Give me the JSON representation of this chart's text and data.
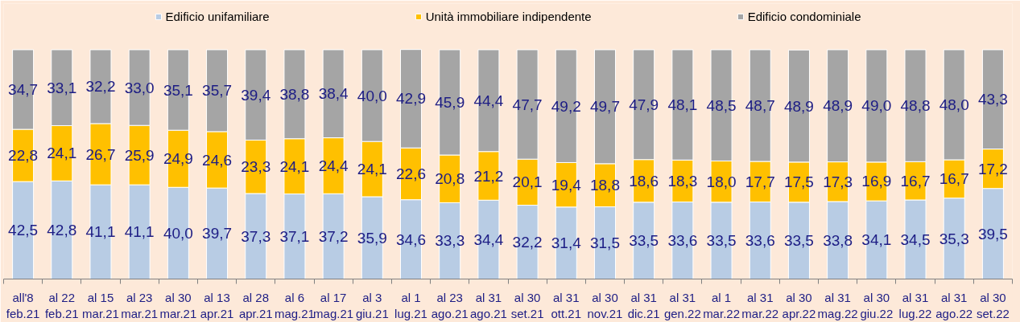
{
  "chart_data": {
    "type": "bar",
    "stacked": true,
    "legend": "top",
    "categories": [
      "all'8\nfeb.21",
      "al 22\nfeb.21",
      "al 15\nmar.21",
      "al 23\nmar.21",
      "al 30\nmar.21",
      "al 13\napr.21",
      "al 28\napr.21",
      "al 6\nmag.21",
      "al 17\nmag.21",
      "al 3\ngiu.21",
      "al 1\nlug.21",
      "al 23\nago.21",
      "al 31\nago.21",
      "al 30\nset.21",
      "al 31\nott.21",
      "al 30\nnov.21",
      "al 31\ndic.21",
      "al 31\ngen.22",
      "al 1\nmar.22",
      "al 31\nmar.22",
      "al 30\napr.22",
      "al 31\nmag.22",
      "al 30\ngiu.22",
      "al 31\nlug.22",
      "al 31\nago.22",
      "al 30\nset.22"
    ],
    "series": [
      {
        "name": "Edificio unifamiliare",
        "color": "#b8cce4",
        "values": [
          42.5,
          42.8,
          41.1,
          41.1,
          40.0,
          39.7,
          37.3,
          37.1,
          37.2,
          35.9,
          34.6,
          33.3,
          34.4,
          32.2,
          31.4,
          31.5,
          33.5,
          33.6,
          33.5,
          33.6,
          33.5,
          33.8,
          34.1,
          34.5,
          35.3,
          39.5
        ],
        "value_labels": [
          "42,5",
          "42,8",
          "41,1",
          "41,1",
          "40,0",
          "39,7",
          "37,3",
          "37,1",
          "37,2",
          "35,9",
          "34,6",
          "33,3",
          "34,4",
          "32,2",
          "31,4",
          "31,5",
          "33,5",
          "33,6",
          "33,5",
          "33,6",
          "33,5",
          "33,8",
          "34,1",
          "34,5",
          "35,3",
          "39,5"
        ]
      },
      {
        "name": "Unità immobiliare indipendente",
        "color": "#ffc000",
        "values": [
          22.8,
          24.1,
          26.7,
          25.9,
          24.9,
          24.6,
          23.3,
          24.1,
          24.4,
          24.1,
          22.6,
          20.8,
          21.2,
          20.1,
          19.4,
          18.8,
          18.6,
          18.3,
          18.0,
          17.7,
          17.5,
          17.3,
          16.9,
          16.7,
          16.7,
          17.2
        ],
        "value_labels": [
          "22,8",
          "24,1",
          "26,7",
          "25,9",
          "24,9",
          "24,6",
          "23,3",
          "24,1",
          "24,4",
          "24,1",
          "22,6",
          "20,8",
          "21,2",
          "20,1",
          "19,4",
          "18,8",
          "18,6",
          "18,3",
          "18,0",
          "17,7",
          "17,5",
          "17,3",
          "16,9",
          "16,7",
          "16,7",
          "17,2"
        ]
      },
      {
        "name": "Edificio condominiale",
        "color": "#a5a5a5",
        "values": [
          34.7,
          33.1,
          32.2,
          33.0,
          35.1,
          35.7,
          39.4,
          38.8,
          38.4,
          40.0,
          42.9,
          45.9,
          44.4,
          47.7,
          49.2,
          49.7,
          47.9,
          48.1,
          48.5,
          48.7,
          48.9,
          48.9,
          49.0,
          48.8,
          48.0,
          43.3
        ],
        "value_labels": [
          "34,7",
          "33,1",
          "32,2",
          "33,0",
          "35,1",
          "35,7",
          "39,4",
          "38,8",
          "38,4",
          "40,0",
          "42,9",
          "45,9",
          "44,4",
          "47,7",
          "49,2",
          "49,7",
          "47,9",
          "48,1",
          "48,5",
          "48,7",
          "48,9",
          "48,9",
          "49,0",
          "48,8",
          "48,0",
          "43,3"
        ]
      }
    ]
  }
}
